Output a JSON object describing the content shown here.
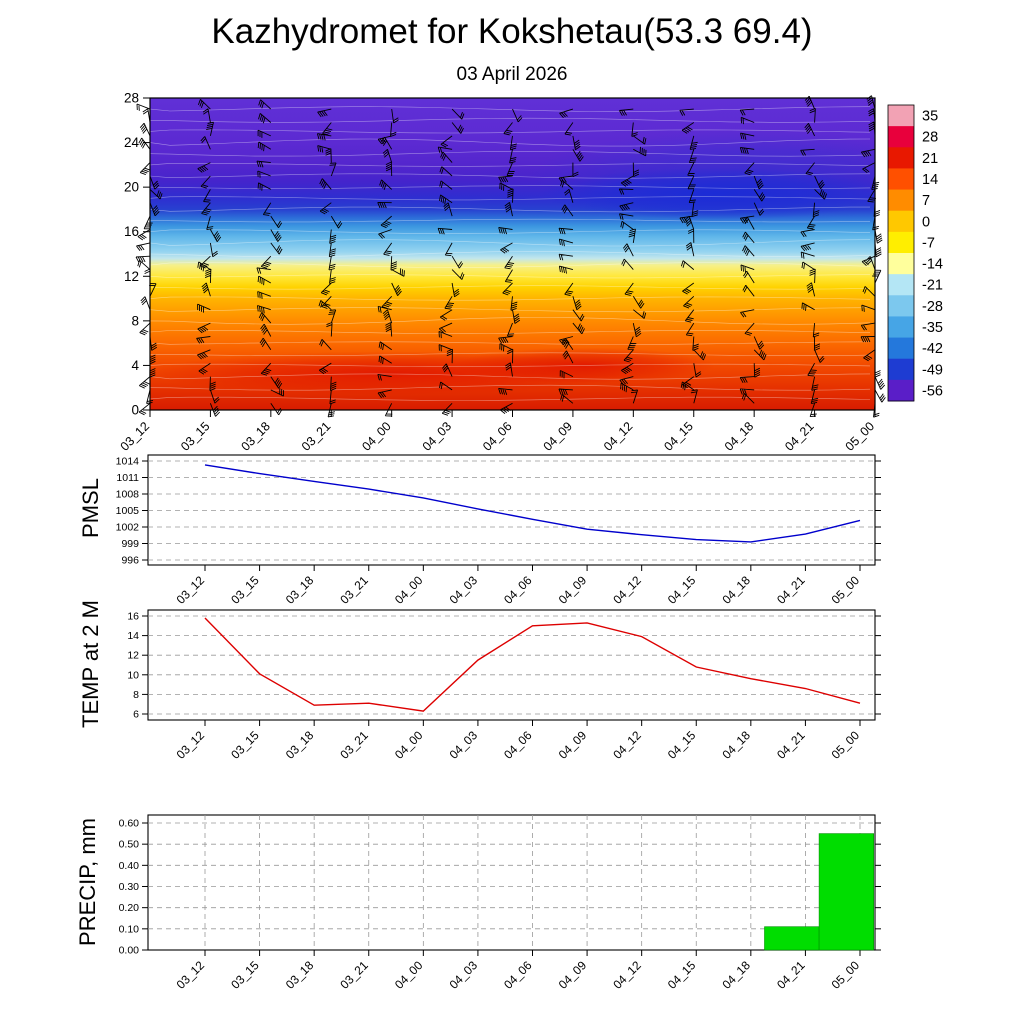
{
  "page": {
    "title": "Kazhydromet for Kokshetau(53.3 69.4)",
    "subtitle": "03 April 2026",
    "background": "#ffffff"
  },
  "times": [
    "03_12",
    "03_15",
    "03_18",
    "03_21",
    "04_00",
    "04_03",
    "04_06",
    "04_09",
    "04_12",
    "04_15",
    "04_18",
    "04_21",
    "05_00"
  ],
  "chart_data": [
    {
      "type": "heatmap",
      "name": "wind-temperature-height-cross-section",
      "x": [
        "03_12",
        "03_15",
        "03_18",
        "03_21",
        "04_00",
        "04_03",
        "04_06",
        "04_09",
        "04_12",
        "04_15",
        "04_18",
        "04_21",
        "05_00"
      ],
      "ylim": [
        0,
        28
      ],
      "yticks": [
        0,
        4,
        8,
        12,
        16,
        20,
        24,
        28
      ],
      "colorbar_labels": [
        "35",
        "28",
        "21",
        "14",
        "7",
        "0",
        "-7",
        "-14",
        "-21",
        "-28",
        "-35",
        "-42",
        "-49",
        "-56"
      ],
      "colorbar_colors": [
        "#f2a2b4",
        "#e8003c",
        "#e81800",
        "#ff5000",
        "#ff8c00",
        "#ffc800",
        "#ffee00",
        "#ffff9c",
        "#b4e6f5",
        "#7cc8ee",
        "#46a5e6",
        "#2478dc",
        "#1e3cd2",
        "#5a1ec8"
      ],
      "profile": [
        {
          "h": 28,
          "color": "#6030d6"
        },
        {
          "h": 24,
          "color": "#5c2ad2"
        },
        {
          "h": 22,
          "color": "#5426cd"
        },
        {
          "h": 20.5,
          "color": "#4424cc"
        },
        {
          "h": 19,
          "color": "#2e2ed0"
        },
        {
          "h": 18,
          "color": "#2840d0"
        },
        {
          "h": 17.3,
          "color": "#2c6ad8"
        },
        {
          "h": 16.5,
          "color": "#3c96e0"
        },
        {
          "h": 15.5,
          "color": "#62b8ea"
        },
        {
          "h": 14.2,
          "color": "#96d4f0"
        },
        {
          "h": 13.6,
          "color": "#c2e6ec"
        },
        {
          "h": 13,
          "color": "#f6f08a"
        },
        {
          "h": 12,
          "color": "#ffe83c"
        },
        {
          "h": 11,
          "color": "#ffd200"
        },
        {
          "h": 10,
          "color": "#ffb400"
        },
        {
          "h": 8,
          "color": "#ff8c00"
        },
        {
          "h": 6,
          "color": "#fb6a00"
        },
        {
          "h": 4,
          "color": "#f24a00"
        },
        {
          "h": 2,
          "color": "#e63200"
        },
        {
          "h": 0,
          "color": "#d81c00"
        }
      ],
      "wind_barbs": {
        "columns": 13,
        "rows": 23,
        "color": "#000000"
      }
    },
    {
      "type": "line",
      "title": "PMSL",
      "x": [
        "03_12",
        "03_15",
        "03_18",
        "03_21",
        "04_00",
        "04_03",
        "04_06",
        "04_09",
        "04_12",
        "04_15",
        "04_18",
        "04_21",
        "05_00"
      ],
      "values": [
        1013.3,
        1011.7,
        1010.3,
        1008.9,
        1007.3,
        1005.3,
        1003.4,
        1001.6,
        1000.6,
        999.7,
        999.3,
        1000.7,
        1003.2
      ],
      "yticks": [
        996,
        999,
        1002,
        1005,
        1008,
        1011,
        1014
      ],
      "color": "#0000cc"
    },
    {
      "type": "line",
      "title": "TEMP at 2 M",
      "x": [
        "03_12",
        "03_15",
        "03_18",
        "03_21",
        "04_00",
        "04_03",
        "04_06",
        "04_09",
        "04_12",
        "04_15",
        "04_18",
        "04_21",
        "05_00"
      ],
      "values": [
        15.8,
        10.1,
        6.9,
        7.1,
        6.3,
        11.5,
        15.0,
        15.3,
        13.9,
        10.8,
        9.6,
        8.6,
        7.1
      ],
      "yticks": [
        6,
        8,
        10,
        12,
        14,
        16
      ],
      "color": "#dd0000"
    },
    {
      "type": "bar",
      "title": "PRECIP, mm",
      "x": [
        "03_12",
        "03_15",
        "03_18",
        "03_21",
        "04_00",
        "04_03",
        "04_06",
        "04_09",
        "04_12",
        "04_15",
        "04_18",
        "04_21",
        "05_00"
      ],
      "values": [
        0,
        0,
        0,
        0,
        0,
        0,
        0,
        0,
        0,
        0,
        0,
        0.11,
        0.55
      ],
      "yticks": [
        0,
        0.1,
        0.2,
        0.3,
        0.4,
        0.5,
        0.6
      ],
      "ytick_format": "2dp",
      "color": "#00dd00"
    }
  ]
}
